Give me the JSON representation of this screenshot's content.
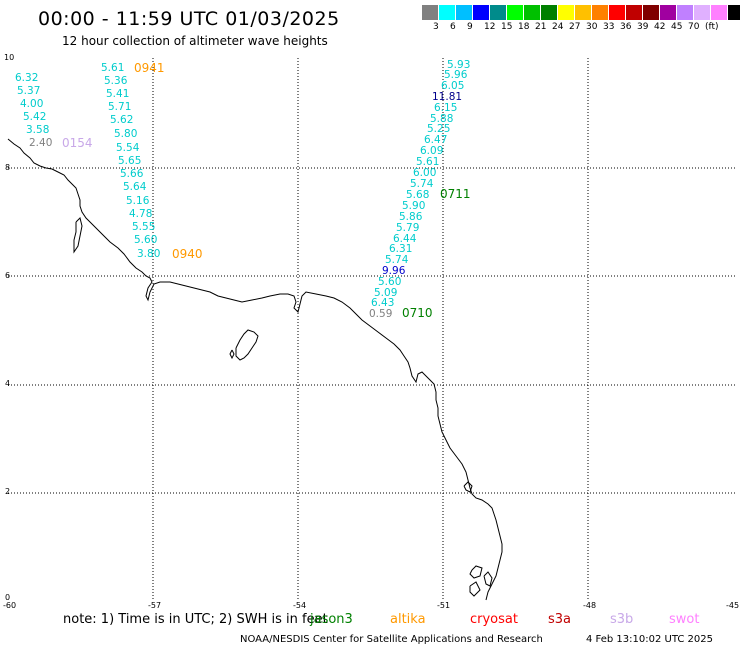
{
  "header": {
    "title": "00:00 - 11:59 UTC 01/03/2025",
    "subtitle": "12 hour collection of altimeter wave heights"
  },
  "legend": {
    "unit": "(ft)",
    "colors": [
      "#808080",
      "#00ffff",
      "#00bfff",
      "#0000ff",
      "#008b8b",
      "#00ff00",
      "#00c000",
      "#008000",
      "#ffff00",
      "#ffc000",
      "#ff8000",
      "#ff0000",
      "#c00000",
      "#800000",
      "#a000a0",
      "#c080ff",
      "#e0b0ff",
      "#ff80ff",
      "#000000"
    ],
    "labels": [
      "3",
      "6",
      "9",
      "12",
      "15",
      "18",
      "21",
      "24",
      "27",
      "30",
      "33",
      "36",
      "39",
      "42",
      "45",
      "70"
    ]
  },
  "axes": {
    "x_ticks": [
      "-60",
      "-57",
      "-54",
      "-51",
      "-48",
      "-45"
    ],
    "y_ticks": [
      "0",
      "2",
      "4",
      "6",
      "8",
      "10"
    ]
  },
  "tracks": [
    {
      "pass": "0941",
      "pass_color": "#ff9900",
      "values": [
        "5.61",
        "5.36",
        "5.41",
        "5.71",
        "5.62",
        "5.80",
        "5.54",
        "5.65",
        "5.66",
        "5.64",
        "5.16",
        "4.78",
        "5.55",
        "5.60",
        "3.80"
      ]
    },
    {
      "pass": "0940",
      "pass_color": "#ff9900"
    },
    {
      "pass": "0154",
      "pass_color": "#c8a8e8",
      "values": [
        "6.32",
        "5.37",
        "4.00",
        "5.42",
        "3.58",
        "2.40"
      ]
    },
    {
      "pass": "0711",
      "pass_color": "#008000",
      "values": [
        "5.93",
        "5.96",
        "6.05",
        "11.81",
        "6.15",
        "5.88",
        "5.25",
        "6.47",
        "6.09",
        "5.61",
        "6.00",
        "5.74",
        "5.68",
        "5.90",
        "5.86",
        "5.79",
        "6.44",
        "6.31",
        "5.74",
        "9.96",
        "5.60",
        "5.09",
        "6.43",
        "0.59"
      ]
    },
    {
      "pass": "0710",
      "pass_color": "#008000"
    }
  ],
  "note": {
    "text": "note: 1) Time is in UTC; 2) SWH is in feet"
  },
  "satellites": [
    {
      "name": "jason3",
      "color": "#008000"
    },
    {
      "name": "altika",
      "color": "#ff9900"
    },
    {
      "name": "cryosat",
      "color": "#ff0000"
    },
    {
      "name": "s3a",
      "color": "#c00000"
    },
    {
      "name": "s3b",
      "color": "#c8a8e8"
    },
    {
      "name": "swot",
      "color": "#ff80ff"
    }
  ],
  "footer": {
    "credit": "NOAA/NESDIS Center for Satellite Applications and Research",
    "timestamp": "4 Feb 13:10:02 UTC 2025"
  }
}
